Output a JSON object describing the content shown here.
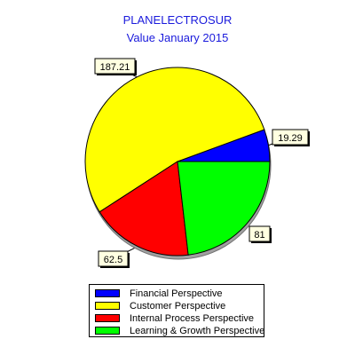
{
  "chart_data": {
    "type": "pie",
    "title": "PLANELECTROSUR",
    "subtitle": "Value January 2015",
    "slices": [
      {
        "name": "Financial Perspective",
        "value": 19.29,
        "label": "19.29",
        "color": "#0000ff"
      },
      {
        "name": "Customer Perspective",
        "value": 187.21,
        "label": "187.21",
        "color": "#ffff00"
      },
      {
        "name": "Internal Process Perspective",
        "value": 62.5,
        "label": "62.5",
        "color": "#ff0000"
      },
      {
        "name": "Learning & Growth Perspective",
        "value": 81,
        "label": "81",
        "color": "#00ff00"
      }
    ],
    "legend_position": "bottom"
  }
}
